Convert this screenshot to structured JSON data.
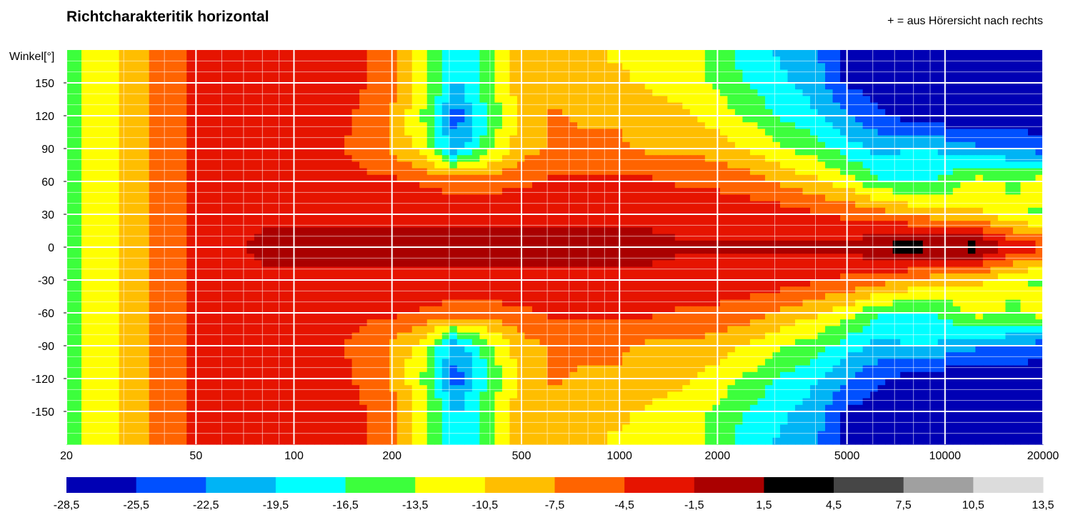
{
  "chart_data": {
    "type": "heatmap",
    "title": "Richtcharakteritik horizontal",
    "note": "+ = aus Hörersicht nach rechts",
    "ylabel": "Winkel[°]",
    "xlabel": "",
    "x_scale": "log",
    "xlim": [
      20,
      20000
    ],
    "ylim": [
      -180,
      180
    ],
    "x_ticks": [
      20,
      50,
      100,
      200,
      500,
      1000,
      2000,
      5000,
      10000,
      20000
    ],
    "y_ticks": [
      150,
      120,
      90,
      60,
      30,
      0,
      -30,
      -60,
      -90,
      -120,
      -150
    ],
    "grid": true,
    "colorbar": {
      "levels": [
        -28.5,
        -25.5,
        -22.5,
        -19.5,
        -16.5,
        -13.5,
        -10.5,
        -7.5,
        -4.5,
        -1.5,
        1.5,
        4.5,
        7.5,
        10.5,
        13.5
      ],
      "labels": [
        "-28,5",
        "-25,5",
        "-22,5",
        "-19,5",
        "-16,5",
        "-13,5",
        "-10,5",
        "-7,5",
        "-4,5",
        "-1,5",
        "1,5",
        "4,5",
        "7,5",
        "10,5",
        "13,5"
      ],
      "colors": [
        "#0000b4",
        "#0050ff",
        "#00b4f5",
        "#00ffff",
        "#3cff3c",
        "#ffff00",
        "#ffbe00",
        "#ff6400",
        "#e61400",
        "#aa0000",
        "#000000",
        "#464646",
        "#a0a0a0",
        "#dcdcdc"
      ]
    },
    "frequency_columns_hz": [
      20,
      25,
      32,
      40,
      50,
      63,
      80,
      100,
      125,
      160,
      200,
      250,
      315,
      400,
      500,
      630,
      800,
      1000,
      1250,
      1600,
      2000,
      2500,
      3150,
      4000,
      5000,
      6300,
      8000,
      10000,
      12500,
      16000,
      20000
    ],
    "angle_rows_deg": [
      180,
      150,
      120,
      90,
      60,
      30,
      0,
      -30,
      -60,
      -90,
      -120,
      -150,
      -180
    ],
    "level_db": [
      [
        -15,
        -12,
        -9,
        -6,
        -4,
        -3,
        -2,
        -2,
        -3,
        -4,
        -6,
        -12,
        -20,
        -14,
        -9,
        -9,
        -10,
        -11,
        -11,
        -12,
        -15,
        -18,
        -20,
        -22,
        -26,
        -27,
        -28,
        -28,
        -28,
        -28,
        -28
      ],
      [
        -15,
        -12,
        -9,
        -6,
        -4,
        -3,
        -2,
        -2,
        -3,
        -4,
        -6,
        -12,
        -20,
        -14,
        -9,
        -9,
        -10,
        -10,
        -11,
        -12,
        -14,
        -17,
        -19,
        -21,
        -26,
        -27,
        -28,
        -28,
        -28,
        -28,
        -28
      ],
      [
        -15,
        -12,
        -9,
        -6,
        -4,
        -3,
        -3,
        -3,
        -3,
        -5,
        -8,
        -14,
        -24,
        -16,
        -9,
        -7,
        -8,
        -8,
        -9,
        -10,
        -12,
        -14,
        -17,
        -19,
        -22,
        -25,
        -27,
        -28,
        -28,
        -28,
        -28
      ],
      [
        -15,
        -12,
        -9,
        -6,
        -4,
        -3,
        -3,
        -3,
        -4,
        -5,
        -8,
        -12,
        -22,
        -14,
        -9,
        -7,
        -7,
        -7,
        -8,
        -8,
        -9,
        -11,
        -13,
        -15,
        -18,
        -21,
        -19,
        -20,
        -22,
        -22,
        -24
      ],
      [
        -15,
        -12,
        -9,
        -6,
        -4,
        -2,
        -2,
        -2,
        -3,
        -4,
        -4,
        -5,
        -6,
        -6,
        -5,
        -4,
        -4,
        -4,
        -4,
        -5,
        -5,
        -6,
        -8,
        -10,
        -12,
        -16,
        -17,
        -16,
        -12,
        -14,
        -12
      ],
      [
        -15,
        -12,
        -9,
        -6,
        -4,
        -2,
        -2,
        -2,
        -2,
        -2,
        -2,
        -2,
        -2,
        -2,
        -2,
        -2,
        -2,
        -2,
        -2,
        -3,
        -3,
        -3,
        -3,
        -4,
        -5,
        -6,
        -8,
        -9,
        -10,
        -13,
        -14
      ],
      [
        -15,
        -12,
        -9,
        -6,
        -4,
        -2,
        -1,
        -1,
        -1,
        -1,
        -1,
        -1,
        -1,
        -1,
        -1,
        -1,
        -1,
        -1,
        -1,
        -1,
        -1,
        -1,
        -1,
        -1,
        -1,
        2,
        3,
        2,
        3,
        -2,
        -4
      ],
      [
        -15,
        -12,
        -9,
        -6,
        -4,
        -2,
        -2,
        -2,
        -2,
        -2,
        -2,
        -2,
        -2,
        -2,
        -2,
        -2,
        -2,
        -2,
        -2,
        -3,
        -3,
        -3,
        -3,
        -4,
        -5,
        -6,
        -8,
        -9,
        -10,
        -13,
        -14
      ],
      [
        -15,
        -12,
        -9,
        -6,
        -4,
        -2,
        -2,
        -2,
        -3,
        -4,
        -4,
        -5,
        -6,
        -6,
        -5,
        -4,
        -4,
        -4,
        -4,
        -5,
        -5,
        -6,
        -8,
        -10,
        -12,
        -16,
        -17,
        -16,
        -12,
        -14,
        -12
      ],
      [
        -15,
        -12,
        -9,
        -6,
        -4,
        -3,
        -3,
        -3,
        -4,
        -5,
        -8,
        -12,
        -22,
        -14,
        -9,
        -7,
        -7,
        -7,
        -8,
        -8,
        -9,
        -11,
        -13,
        -15,
        -18,
        -21,
        -19,
        -20,
        -22,
        -22,
        -24
      ],
      [
        -15,
        -12,
        -9,
        -6,
        -4,
        -3,
        -3,
        -3,
        -3,
        -5,
        -8,
        -14,
        -24,
        -16,
        -9,
        -7,
        -8,
        -8,
        -9,
        -10,
        -12,
        -14,
        -17,
        -19,
        -22,
        -25,
        -27,
        -28,
        -28,
        -28,
        -28
      ],
      [
        -15,
        -12,
        -9,
        -6,
        -4,
        -3,
        -2,
        -2,
        -3,
        -4,
        -6,
        -12,
        -20,
        -14,
        -9,
        -9,
        -10,
        -10,
        -11,
        -12,
        -14,
        -17,
        -19,
        -21,
        -26,
        -27,
        -28,
        -28,
        -28,
        -28,
        -28
      ],
      [
        -15,
        -12,
        -9,
        -6,
        -4,
        -3,
        -2,
        -2,
        -3,
        -4,
        -6,
        -12,
        -20,
        -14,
        -9,
        -9,
        -10,
        -11,
        -11,
        -12,
        -15,
        -18,
        -20,
        -22,
        -26,
        -27,
        -28,
        -28,
        -28,
        -28,
        -28
      ]
    ]
  }
}
